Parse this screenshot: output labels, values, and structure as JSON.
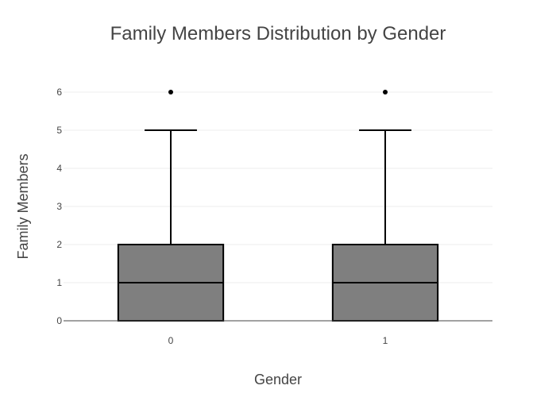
{
  "chart_data": {
    "type": "box",
    "title": "Family Members Distribution by Gender",
    "xlabel": "Gender",
    "ylabel": "Family Members",
    "categories": [
      "0",
      "1"
    ],
    "ylim": [
      0,
      6
    ],
    "y_ticks": [
      "0",
      "1",
      "2",
      "3",
      "4",
      "5",
      "6"
    ],
    "grid": true,
    "boxes": [
      {
        "category": "0",
        "min": 0,
        "q1": 0,
        "median": 1,
        "q3": 2,
        "upper_whisker": 5,
        "outliers": [
          6
        ]
      },
      {
        "category": "1",
        "min": 0,
        "q1": 0,
        "median": 1,
        "q3": 2,
        "upper_whisker": 5,
        "outliers": [
          6
        ]
      }
    ],
    "colors": {
      "box_fill": "#7f7f7f",
      "box_line": "#000000",
      "outlier": "#000000",
      "grid": "#eeeeee",
      "axis_line": "#444444",
      "text": "#444444"
    }
  }
}
